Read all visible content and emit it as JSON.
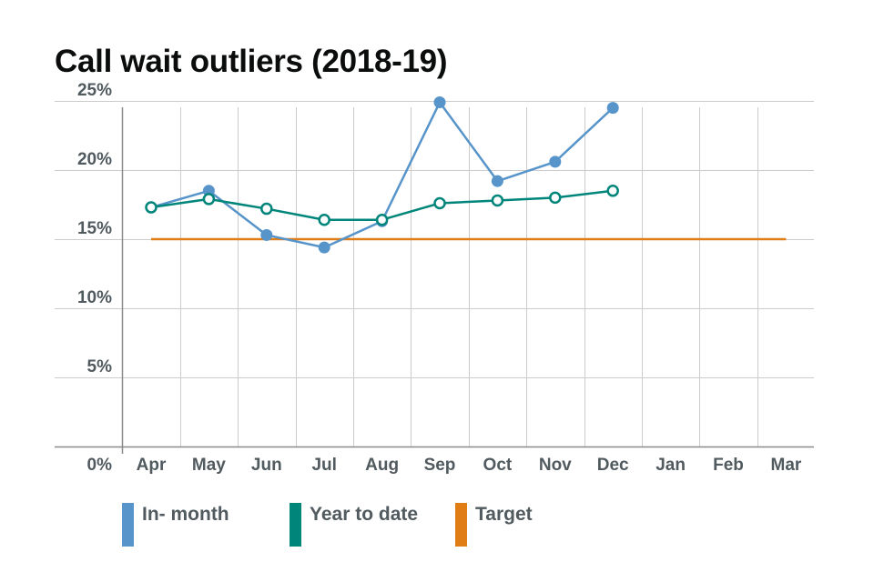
{
  "chart_data": {
    "type": "line",
    "title": "Call wait outliers (2018-19)",
    "xlabel": "",
    "ylabel": "",
    "categories": [
      "Apr",
      "May",
      "Jun",
      "Jul",
      "Aug",
      "Sep",
      "Oct",
      "Nov",
      "Dec",
      "Jan",
      "Feb",
      "Mar"
    ],
    "y_tick_labels": [
      "0%",
      "5%",
      "10%",
      "15%",
      "20%",
      "25%"
    ],
    "ylim": [
      0,
      25
    ],
    "grid": true,
    "legend_position": "bottom",
    "series": [
      {
        "name": "In- month",
        "color": "#5694ca",
        "marker": "filled-circle",
        "values": [
          17.3,
          18.5,
          15.3,
          14.4,
          16.3,
          24.9,
          19.2,
          20.6,
          24.5,
          null,
          null,
          null
        ]
      },
      {
        "name": "Year to date",
        "color": "#00857b",
        "marker": "hollow-circle",
        "values": [
          17.3,
          17.9,
          17.2,
          16.4,
          16.4,
          17.6,
          17.8,
          18.0,
          18.5,
          null,
          null,
          null
        ]
      },
      {
        "name": "Target",
        "color": "#e07d15",
        "marker": "none",
        "values": [
          15,
          15,
          15,
          15,
          15,
          15,
          15,
          15,
          15,
          15,
          15,
          15
        ]
      }
    ]
  }
}
